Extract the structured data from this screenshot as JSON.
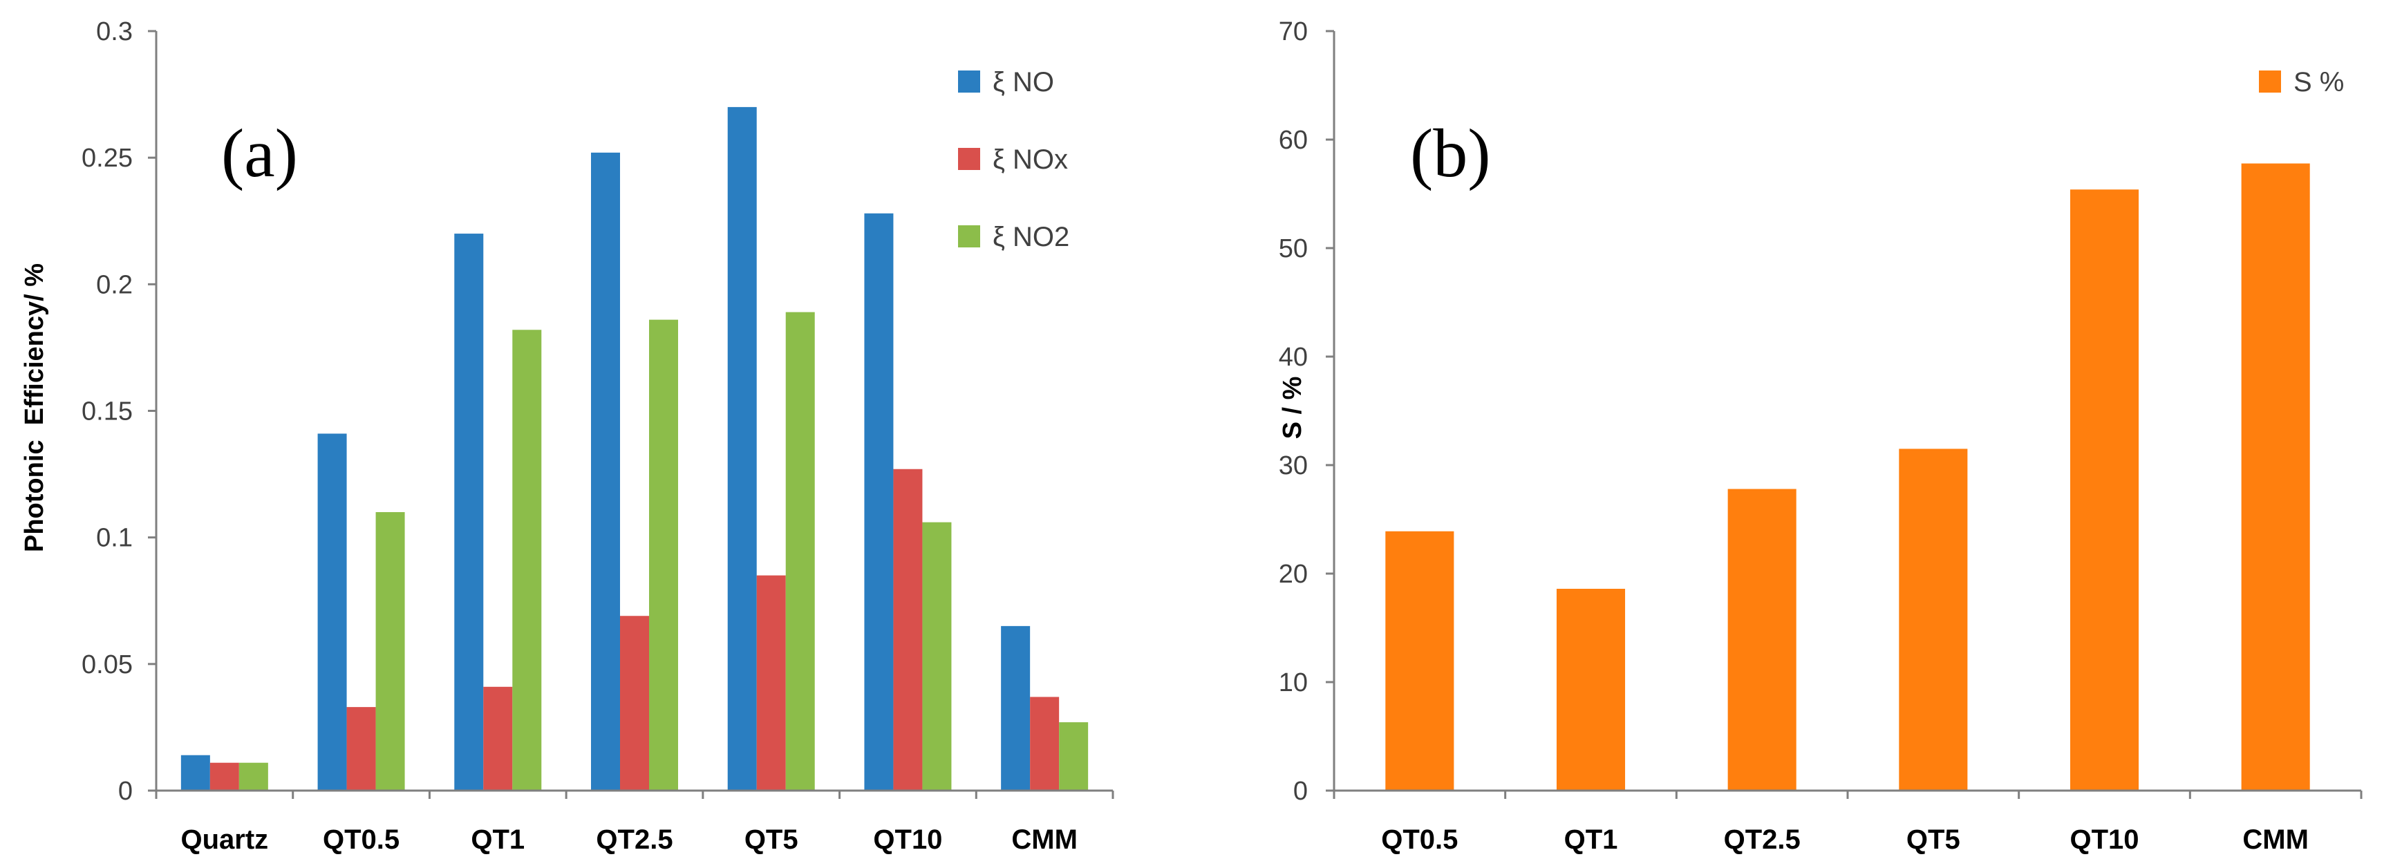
{
  "chart_data": [
    {
      "type": "bar",
      "panel_label": "(a)",
      "ylabel": "Photonic  Efficiency/ %",
      "xlabel": "",
      "ylim": [
        0,
        0.3
      ],
      "yticks": [
        "0",
        "0.05",
        "0.1",
        "0.15",
        "0.2",
        "0.25",
        "0.3"
      ],
      "categories": [
        "Quartz",
        "QT0.5",
        "QT1",
        "QT2.5",
        "QT5",
        "QT10",
        "CMM"
      ],
      "legend_position": "top-right",
      "series": [
        {
          "name": "ξ NO",
          "color": "#2a7ec1",
          "values": [
            0.014,
            0.141,
            0.22,
            0.252,
            0.27,
            0.228,
            0.065
          ]
        },
        {
          "name": "ξ NOx",
          "color": "#d9504c",
          "values": [
            0.011,
            0.033,
            0.041,
            0.069,
            0.085,
            0.127,
            0.037
          ]
        },
        {
          "name": "ξ NO2",
          "color": "#8cbd4a",
          "values": [
            0.011,
            0.11,
            0.182,
            0.186,
            0.189,
            0.106,
            0.027
          ]
        }
      ]
    },
    {
      "type": "bar",
      "panel_label": "(b)",
      "ylabel": "S / %",
      "xlabel": "",
      "ylim": [
        0,
        70
      ],
      "yticks": [
        "0",
        "10",
        "20",
        "30",
        "40",
        "50",
        "60",
        "70"
      ],
      "categories": [
        "QT0.5",
        "QT1",
        "QT2.5",
        "QT5",
        "QT10",
        "CMM"
      ],
      "legend_position": "top-right",
      "series": [
        {
          "name": "S %",
          "color": "#ff7f0e",
          "values": [
            23.9,
            18.6,
            27.8,
            31.5,
            55.4,
            57.8
          ]
        }
      ]
    }
  ]
}
